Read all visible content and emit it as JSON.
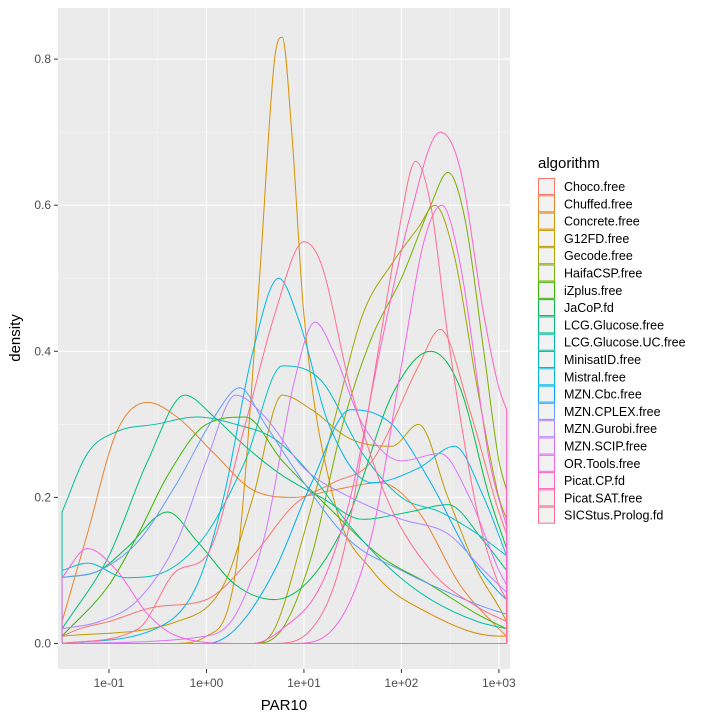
{
  "chart_data": {
    "type": "line",
    "title": "",
    "xlabel": "PAR10",
    "ylabel": "density",
    "x_scale": "log10",
    "xlim": [
      0.03,
      1300
    ],
    "ylim": [
      -0.035,
      0.87
    ],
    "x_ticks": [
      0.1,
      1,
      10,
      100,
      1000
    ],
    "x_tick_labels": [
      "1e-01",
      "1e+00",
      "1e+01",
      "1e+02",
      "1e+03"
    ],
    "y_ticks": [
      0.0,
      0.2,
      0.4,
      0.6,
      0.8
    ],
    "y_tick_labels": [
      "0.0",
      "0.2",
      "0.4",
      "0.6",
      "0.8"
    ],
    "grid": true,
    "legend": {
      "title": "algorithm",
      "position": "right"
    },
    "series": [
      {
        "name": "Choco.free",
        "color": "#F8766D",
        "points": [
          [
            0.033,
            0.01
          ],
          [
            0.05,
            0.02
          ],
          [
            0.1,
            0.03
          ],
          [
            0.3,
            0.05
          ],
          [
            1,
            0.06
          ],
          [
            3,
            0.12
          ],
          [
            8,
            0.19
          ],
          [
            20,
            0.22
          ],
          [
            50,
            0.25
          ],
          [
            150,
            0.38
          ],
          [
            250,
            0.43
          ],
          [
            500,
            0.32
          ],
          [
            1000,
            0.18
          ],
          [
            1200,
            0.15
          ]
        ]
      },
      {
        "name": "Chuffed.free",
        "color": "#EA8331",
        "points": [
          [
            0.033,
            0.03
          ],
          [
            0.06,
            0.15
          ],
          [
            0.12,
            0.29
          ],
          [
            0.25,
            0.33
          ],
          [
            0.5,
            0.31
          ],
          [
            1.2,
            0.26
          ],
          [
            3,
            0.21
          ],
          [
            8,
            0.2
          ],
          [
            20,
            0.21
          ],
          [
            60,
            0.22
          ],
          [
            150,
            0.18
          ],
          [
            400,
            0.08
          ],
          [
            1000,
            0.02
          ],
          [
            1200,
            0.01
          ]
        ]
      },
      {
        "name": "Concrete.free",
        "color": "#D89000",
        "points": [
          [
            0.033,
            0.0
          ],
          [
            0.5,
            0.0
          ],
          [
            1,
            0.01
          ],
          [
            2,
            0.1
          ],
          [
            3.5,
            0.5
          ],
          [
            5,
            0.8
          ],
          [
            6,
            0.83
          ],
          [
            7.5,
            0.7
          ],
          [
            10,
            0.45
          ],
          [
            20,
            0.2
          ],
          [
            50,
            0.1
          ],
          [
            200,
            0.04
          ],
          [
            1000,
            0.01
          ],
          [
            1200,
            0.01
          ]
        ]
      },
      {
        "name": "G12FD.free",
        "color": "#C09B00",
        "points": [
          [
            0.033,
            0.01
          ],
          [
            0.5,
            0.03
          ],
          [
            1.5,
            0.08
          ],
          [
            3,
            0.2
          ],
          [
            6,
            0.34
          ],
          [
            12,
            0.32
          ],
          [
            30,
            0.28
          ],
          [
            80,
            0.27
          ],
          [
            150,
            0.3
          ],
          [
            300,
            0.2
          ],
          [
            600,
            0.1
          ],
          [
            1000,
            0.05
          ],
          [
            1200,
            0.03
          ]
        ]
      },
      {
        "name": "Gecode.free",
        "color": "#A3A500",
        "points": [
          [
            0.033,
            0.0
          ],
          [
            3,
            0.0
          ],
          [
            5,
            0.02
          ],
          [
            10,
            0.15
          ],
          [
            20,
            0.3
          ],
          [
            40,
            0.45
          ],
          [
            80,
            0.52
          ],
          [
            150,
            0.57
          ],
          [
            220,
            0.6
          ],
          [
            350,
            0.53
          ],
          [
            600,
            0.35
          ],
          [
            1000,
            0.2
          ],
          [
            1200,
            0.17
          ]
        ]
      },
      {
        "name": "HaifaCSP.free",
        "color": "#7CAE00",
        "points": [
          [
            0.033,
            0.0
          ],
          [
            3,
            0.0
          ],
          [
            6,
            0.02
          ],
          [
            12,
            0.12
          ],
          [
            25,
            0.3
          ],
          [
            50,
            0.42
          ],
          [
            100,
            0.5
          ],
          [
            200,
            0.6
          ],
          [
            300,
            0.645
          ],
          [
            450,
            0.58
          ],
          [
            700,
            0.4
          ],
          [
            1000,
            0.25
          ],
          [
            1200,
            0.21
          ]
        ]
      },
      {
        "name": "iZplus.free",
        "color": "#39B600",
        "points": [
          [
            0.033,
            0.01
          ],
          [
            0.1,
            0.08
          ],
          [
            0.2,
            0.15
          ],
          [
            0.4,
            0.23
          ],
          [
            1,
            0.3
          ],
          [
            2.5,
            0.31
          ],
          [
            6,
            0.25
          ],
          [
            20,
            0.18
          ],
          [
            60,
            0.12
          ],
          [
            200,
            0.08
          ],
          [
            600,
            0.04
          ],
          [
            1200,
            0.02
          ]
        ]
      },
      {
        "name": "JaCoP.fd",
        "color": "#00BB4E",
        "points": [
          [
            0.033,
            0.09
          ],
          [
            0.08,
            0.1
          ],
          [
            0.15,
            0.13
          ],
          [
            0.4,
            0.18
          ],
          [
            0.8,
            0.14
          ],
          [
            2,
            0.08
          ],
          [
            5,
            0.06
          ],
          [
            12,
            0.09
          ],
          [
            30,
            0.18
          ],
          [
            80,
            0.34
          ],
          [
            200,
            0.4
          ],
          [
            400,
            0.35
          ],
          [
            800,
            0.2
          ],
          [
            1200,
            0.13
          ]
        ]
      },
      {
        "name": "LCG.Glucose.free",
        "color": "#00BF7D",
        "points": [
          [
            0.033,
            0.02
          ],
          [
            0.1,
            0.12
          ],
          [
            0.25,
            0.25
          ],
          [
            0.6,
            0.34
          ],
          [
            1.2,
            0.31
          ],
          [
            2.5,
            0.27
          ],
          [
            6,
            0.23
          ],
          [
            15,
            0.2
          ],
          [
            40,
            0.17
          ],
          [
            120,
            0.18
          ],
          [
            300,
            0.19
          ],
          [
            700,
            0.14
          ],
          [
            1200,
            0.1
          ]
        ]
      },
      {
        "name": "LCG.Glucose.UC.free",
        "color": "#00C1A3",
        "points": [
          [
            0.033,
            0.18
          ],
          [
            0.06,
            0.26
          ],
          [
            0.12,
            0.29
          ],
          [
            0.3,
            0.3
          ],
          [
            0.8,
            0.31
          ],
          [
            2,
            0.3
          ],
          [
            5,
            0.28
          ],
          [
            12,
            0.23
          ],
          [
            30,
            0.16
          ],
          [
            80,
            0.1
          ],
          [
            200,
            0.06
          ],
          [
            600,
            0.03
          ],
          [
            1200,
            0.02
          ]
        ]
      },
      {
        "name": "MinisatID.free",
        "color": "#00BFC4",
        "points": [
          [
            0.033,
            0.1
          ],
          [
            0.06,
            0.11
          ],
          [
            0.15,
            0.09
          ],
          [
            0.4,
            0.1
          ],
          [
            1,
            0.15
          ],
          [
            2.5,
            0.25
          ],
          [
            6,
            0.38
          ],
          [
            15,
            0.36
          ],
          [
            40,
            0.26
          ],
          [
            100,
            0.2
          ],
          [
            250,
            0.18
          ],
          [
            600,
            0.15
          ],
          [
            1200,
            0.12
          ]
        ]
      },
      {
        "name": "Mistral.free",
        "color": "#00B9E3",
        "points": [
          [
            0.033,
            0.0
          ],
          [
            0.3,
            0.02
          ],
          [
            0.8,
            0.08
          ],
          [
            1.5,
            0.2
          ],
          [
            3,
            0.4
          ],
          [
            5.5,
            0.5
          ],
          [
            9,
            0.44
          ],
          [
            18,
            0.3
          ],
          [
            50,
            0.22
          ],
          [
            150,
            0.24
          ],
          [
            350,
            0.27
          ],
          [
            700,
            0.2
          ],
          [
            1200,
            0.12
          ]
        ]
      },
      {
        "name": "MZN.Cbc.free",
        "color": "#00ADFA",
        "points": [
          [
            0.033,
            0.0
          ],
          [
            1,
            0.0
          ],
          [
            2,
            0.02
          ],
          [
            5,
            0.1
          ],
          [
            12,
            0.22
          ],
          [
            30,
            0.32
          ],
          [
            80,
            0.3
          ],
          [
            200,
            0.22
          ],
          [
            500,
            0.12
          ],
          [
            1000,
            0.07
          ],
          [
            1200,
            0.06
          ]
        ]
      },
      {
        "name": "MZN.CPLEX.free",
        "color": "#619CFF",
        "points": [
          [
            0.033,
            0.09
          ],
          [
            0.08,
            0.1
          ],
          [
            0.2,
            0.14
          ],
          [
            0.5,
            0.22
          ],
          [
            1.2,
            0.31
          ],
          [
            2.2,
            0.35
          ],
          [
            4,
            0.3
          ],
          [
            10,
            0.22
          ],
          [
            30,
            0.14
          ],
          [
            100,
            0.1
          ],
          [
            300,
            0.07
          ],
          [
            700,
            0.05
          ],
          [
            1200,
            0.04
          ]
        ]
      },
      {
        "name": "MZN.Gurobi.free",
        "color": "#AE87FF",
        "points": [
          [
            0.033,
            0.02
          ],
          [
            0.08,
            0.03
          ],
          [
            0.2,
            0.06
          ],
          [
            0.5,
            0.14
          ],
          [
            1,
            0.25
          ],
          [
            2,
            0.34
          ],
          [
            4,
            0.31
          ],
          [
            10,
            0.24
          ],
          [
            30,
            0.2
          ],
          [
            100,
            0.17
          ],
          [
            300,
            0.15
          ],
          [
            700,
            0.1
          ],
          [
            1200,
            0.07
          ]
        ]
      },
      {
        "name": "MZN.SCIP.free",
        "color": "#DB72FB",
        "points": [
          [
            0.033,
            0.0
          ],
          [
            1,
            0.01
          ],
          [
            2,
            0.04
          ],
          [
            4,
            0.15
          ],
          [
            8,
            0.36
          ],
          [
            13,
            0.44
          ],
          [
            20,
            0.4
          ],
          [
            40,
            0.3
          ],
          [
            100,
            0.25
          ],
          [
            250,
            0.26
          ],
          [
            500,
            0.2
          ],
          [
            1000,
            0.1
          ],
          [
            1200,
            0.08
          ]
        ]
      },
      {
        "name": "OR.Tools.free",
        "color": "#F564E3",
        "points": [
          [
            0.033,
            0.09
          ],
          [
            0.06,
            0.13
          ],
          [
            0.12,
            0.1
          ],
          [
            0.25,
            0.04
          ],
          [
            0.5,
            0.01
          ],
          [
            2,
            0.0
          ],
          [
            8,
            0.0
          ],
          [
            20,
            0.02
          ],
          [
            50,
            0.15
          ],
          [
            100,
            0.38
          ],
          [
            170,
            0.55
          ],
          [
            260,
            0.6
          ],
          [
            400,
            0.52
          ],
          [
            800,
            0.25
          ],
          [
            1200,
            0.16
          ]
        ]
      },
      {
        "name": "Picat.CP.fd",
        "color": "#FF61C3",
        "points": [
          [
            0.033,
            0.0
          ],
          [
            3,
            0.0
          ],
          [
            6,
            0.02
          ],
          [
            15,
            0.08
          ],
          [
            30,
            0.2
          ],
          [
            60,
            0.4
          ],
          [
            120,
            0.58
          ],
          [
            250,
            0.7
          ],
          [
            400,
            0.65
          ],
          [
            700,
            0.45
          ],
          [
            1000,
            0.35
          ],
          [
            1200,
            0.32
          ]
        ]
      },
      {
        "name": "Picat.SAT.free",
        "color": "#FF6C91",
        "points": [
          [
            0.033,
            0.0
          ],
          [
            0.2,
            0.02
          ],
          [
            0.5,
            0.1
          ],
          [
            1,
            0.12
          ],
          [
            2.5,
            0.3
          ],
          [
            5,
            0.45
          ],
          [
            10,
            0.55
          ],
          [
            15,
            0.52
          ],
          [
            30,
            0.35
          ],
          [
            70,
            0.2
          ],
          [
            200,
            0.1
          ],
          [
            600,
            0.05
          ],
          [
            1200,
            0.03
          ]
        ]
      },
      {
        "name": "SICStus.Prolog.fd",
        "color": "#FF6C91",
        "points": [
          [
            0.033,
            0.0
          ],
          [
            5,
            0.0
          ],
          [
            12,
            0.02
          ],
          [
            25,
            0.12
          ],
          [
            50,
            0.35
          ],
          [
            90,
            0.55
          ],
          [
            140,
            0.66
          ],
          [
            200,
            0.6
          ],
          [
            300,
            0.42
          ],
          [
            600,
            0.18
          ],
          [
            1000,
            0.08
          ],
          [
            1200,
            0.06
          ]
        ]
      }
    ]
  }
}
